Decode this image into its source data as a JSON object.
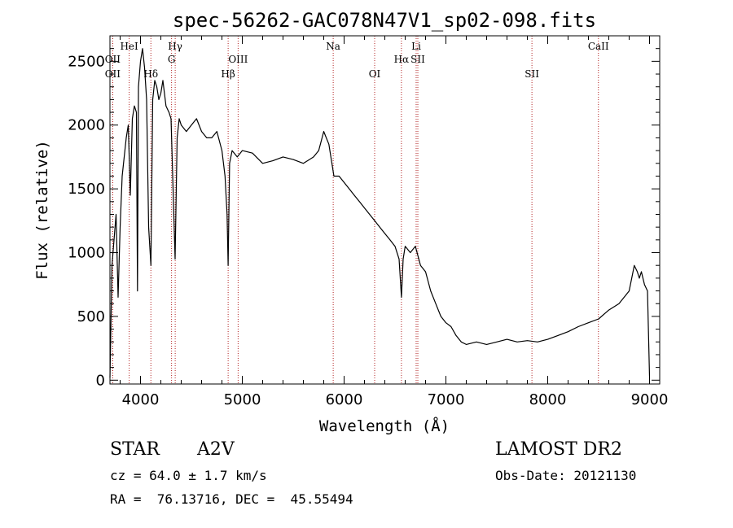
{
  "chart_data": {
    "type": "line",
    "title": "spec-56262-GAC078N47V1_sp02-098.fits",
    "xlabel": "Wavelength (Å)",
    "ylabel": "Flux (relative)",
    "xlim": [
      3700,
      9100
    ],
    "ylim": [
      -30,
      2700
    ],
    "xticks": [
      4000,
      5000,
      6000,
      7000,
      8000,
      9000
    ],
    "yticks": [
      0,
      500,
      1000,
      1500,
      2000,
      2500
    ],
    "grid": false,
    "series": [
      {
        "x": [
          3700,
          3720,
          3740,
          3760,
          3780,
          3800,
          3820,
          3840,
          3860,
          3880,
          3900,
          3920,
          3940,
          3960,
          3970,
          3980,
          4000,
          4020,
          4040,
          4060,
          4080,
          4102,
          4120,
          4140,
          4160,
          4180,
          4200,
          4220,
          4250,
          4280,
          4300,
          4320,
          4340,
          4360,
          4380,
          4400,
          4450,
          4500,
          4550,
          4600,
          4650,
          4700,
          4750,
          4800,
          4830,
          4850,
          4861,
          4875,
          4900,
          4950,
          5000,
          5100,
          5200,
          5300,
          5400,
          5500,
          5600,
          5700,
          5750,
          5800,
          5850,
          5900,
          5950,
          6000,
          6050,
          6100,
          6150,
          6200,
          6250,
          6300,
          6350,
          6400,
          6450,
          6500,
          6540,
          6563,
          6580,
          6600,
          6650,
          6700,
          6750,
          6800,
          6850,
          6900,
          6950,
          7000,
          7050,
          7100,
          7150,
          7200,
          7300,
          7400,
          7500,
          7600,
          7700,
          7800,
          7900,
          8000,
          8100,
          8200,
          8300,
          8400,
          8500,
          8600,
          8700,
          8750,
          8800,
          8850,
          8880,
          8900,
          8920,
          8950,
          8980,
          9000
        ],
        "values": [
          20,
          900,
          1100,
          1300,
          650,
          1200,
          1600,
          1750,
          1900,
          2000,
          1450,
          2050,
          2150,
          2100,
          700,
          2300,
          2500,
          2600,
          2450,
          2200,
          1200,
          900,
          2200,
          2350,
          2300,
          2200,
          2250,
          2350,
          2150,
          2100,
          2050,
          1500,
          950,
          1900,
          2050,
          2000,
          1950,
          2000,
          2050,
          1950,
          1900,
          1900,
          1950,
          1800,
          1600,
          1300,
          900,
          1700,
          1800,
          1750,
          1800,
          1780,
          1700,
          1720,
          1750,
          1730,
          1700,
          1750,
          1800,
          1950,
          1850,
          1600,
          1600,
          1550,
          1500,
          1450,
          1400,
          1350,
          1300,
          1250,
          1200,
          1150,
          1100,
          1050,
          950,
          650,
          950,
          1050,
          1000,
          1050,
          900,
          850,
          700,
          600,
          500,
          450,
          420,
          350,
          300,
          280,
          300,
          280,
          300,
          320,
          300,
          310,
          300,
          320,
          350,
          380,
          420,
          450,
          480,
          550,
          600,
          650,
          700,
          900,
          850,
          800,
          850,
          750,
          700,
          30
        ]
      }
    ],
    "spectral_lines": [
      {
        "label": "OII",
        "wavelength": 3727,
        "row": 2
      },
      {
        "label": "OII",
        "wavelength": 3727,
        "row": 3
      },
      {
        "label": "HeI",
        "wavelength": 3889,
        "row": 1
      },
      {
        "label": "Hδ",
        "wavelength": 4102,
        "row": 3
      },
      {
        "label": "Hγ",
        "wavelength": 4341,
        "row": 1
      },
      {
        "label": "G",
        "wavelength": 4305,
        "row": 2
      },
      {
        "label": "Hβ",
        "wavelength": 4861,
        "row": 3
      },
      {
        "label": "OIII",
        "wavelength": 4959,
        "row": 2
      },
      {
        "label": "Na",
        "wavelength": 5893,
        "row": 1
      },
      {
        "label": "OI",
        "wavelength": 6300,
        "row": 3
      },
      {
        "label": "Hα",
        "wavelength": 6563,
        "row": 2
      },
      {
        "label": "Li",
        "wavelength": 6708,
        "row": 1
      },
      {
        "label": "SII",
        "wavelength": 6724,
        "row": 2
      },
      {
        "label": "SII",
        "wavelength": 7845,
        "row": 3
      },
      {
        "label": "CaII",
        "wavelength": 8498,
        "row": 1
      }
    ]
  },
  "info": {
    "class_label": "STAR",
    "subclass": "A2V",
    "survey": "LAMOST DR2",
    "redshift": "cz = 64.0 ± 1.7 km/s",
    "obs_date": "Obs-Date: 20121130",
    "coords": "RA =  76.13716, DEC =  45.55494"
  },
  "colors": {
    "line_marker": "#b22222",
    "spectrum": "#000000"
  }
}
